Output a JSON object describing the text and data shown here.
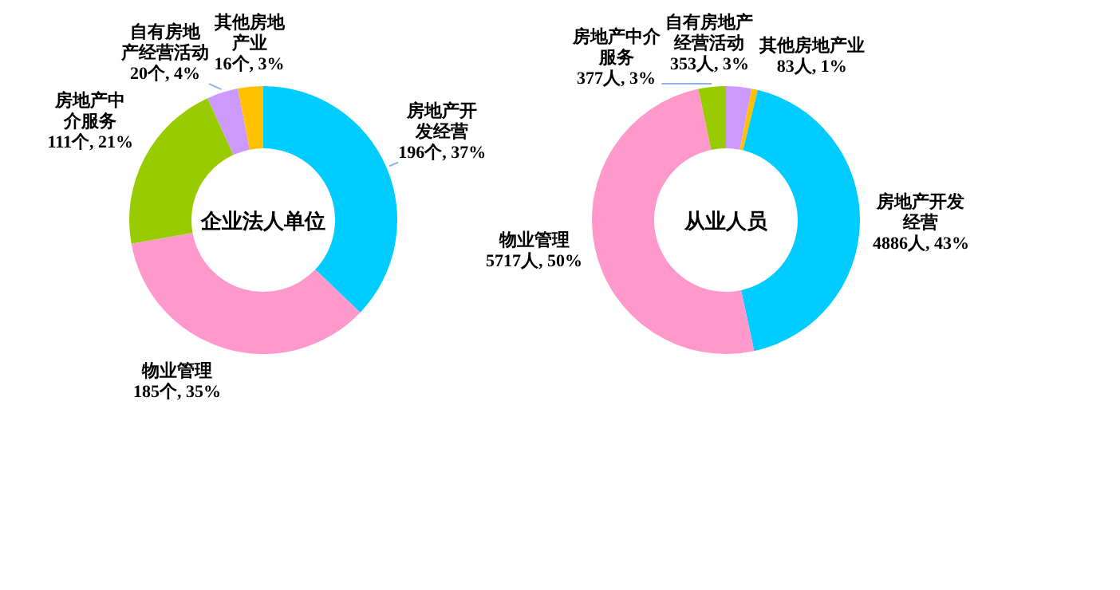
{
  "chart_data": [
    {
      "type": "donut",
      "title": "企业法人单位",
      "categories": [
        "房地产开发经营",
        "物业管理",
        "房地产中介服务",
        "自有房地产经营活动",
        "其他房地产业"
      ],
      "values": [
        196,
        185,
        111,
        20,
        16
      ],
      "colors": [
        "#00ccff",
        "#ff99cc",
        "#99cc00",
        "#cc99ff",
        "#ffc000"
      ],
      "value_labels": [
        "196个, 37%",
        "185个, 35%",
        "111个, 21%",
        "20个,  4%",
        "16个,  3%"
      ]
    },
    {
      "type": "donut",
      "title": "从业人员",
      "categories": [
        "自有房地产经营活动",
        "其他房地产业",
        "房地产开发经营",
        "物业管理",
        "房地产中介服务"
      ],
      "values": [
        353,
        83,
        4886,
        5717,
        377
      ],
      "colors": [
        "#cc99ff",
        "#ffc000",
        "#00ccff",
        "#ff99cc",
        "#99cc00"
      ],
      "value_labels": [
        "353人,  3%",
        "83人,  1%",
        "4886人,  43%",
        "5717人,  50%",
        "377人,  3%"
      ]
    }
  ]
}
